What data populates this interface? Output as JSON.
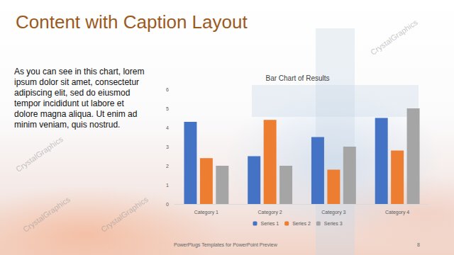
{
  "slide": {
    "title": "Content with Caption Layout",
    "caption": "As you can see in this chart, lorem ipsum dolor sit amet, consectetur adipiscing elit, sed do eiusmod tempor incididunt ut labore et dolore magna aliqua. Ut enim ad minim veniam, quis nostrud.",
    "footer": "PowerPlugs Templates for PowerPoint Preview",
    "page": 8,
    "watermark": "CrystalGraphics"
  },
  "chart_data": {
    "type": "bar",
    "title": "Bar Chart of Results",
    "categories": [
      "Category 1",
      "Category 2",
      "Category 3",
      "Category 4"
    ],
    "series": [
      {
        "name": "Series 1",
        "color": "#4472c4",
        "values": [
          4.3,
          2.5,
          3.5,
          4.5
        ]
      },
      {
        "name": "Series 2",
        "color": "#ed7d31",
        "values": [
          2.4,
          4.4,
          1.8,
          2.8
        ]
      },
      {
        "name": "Series 3",
        "color": "#a5a5a5",
        "values": [
          2,
          2,
          3,
          5
        ]
      }
    ],
    "ylim": [
      0,
      6
    ],
    "yticks": [
      0,
      1,
      2,
      3,
      4,
      5,
      6
    ],
    "grid": false,
    "legend": "bottom"
  }
}
